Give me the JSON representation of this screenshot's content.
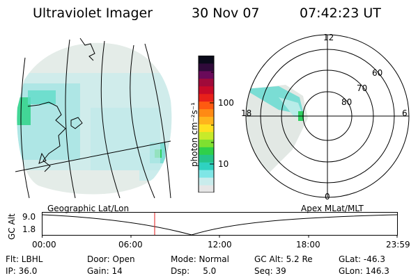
{
  "header": {
    "instrument": "Ultraviolet Imager",
    "date": "30 Nov 07",
    "time": "07:42:23 UT"
  },
  "colorbar": {
    "unit_label": "photon cm⁻²s⁻¹",
    "ticks": [
      "100",
      "10"
    ],
    "colors": [
      "#e6e6e6",
      "#c9ecec",
      "#7fe6e6",
      "#2fd2c0",
      "#25c48a",
      "#2fd04a",
      "#7fe030",
      "#c8ea2a",
      "#ffe020",
      "#ffb41c",
      "#ff8a14",
      "#ff5a10",
      "#e8201a",
      "#c80a28",
      "#a00a3a",
      "#6a0a5a",
      "#300a3a",
      "#0a0a1a"
    ]
  },
  "left_panel": {
    "name": "geographic-map"
  },
  "polar_plot": {
    "mlt_labels": {
      "top": "12",
      "left": "18",
      "right": "6",
      "bottom": "0"
    },
    "mlat_labels": [
      "60",
      "70",
      "80"
    ]
  },
  "altitude_plot": {
    "left_label": "Geographic Lat/Lon",
    "right_label": "Apex MLat/MLT",
    "y_axis_title": "GC Alt",
    "y_ticks": [
      "9.0",
      "1.8"
    ],
    "x_ticks": [
      "00:00",
      "06:00",
      "12:00",
      "18:00",
      "23:59"
    ]
  },
  "info": {
    "filter": "Flt: LBHL",
    "ip": "IP: 36.0",
    "door": "Door: Open",
    "gain": "Gain: 14",
    "mode": "Mode: Normal",
    "dsp": "Dsp:     5.0",
    "gc_alt": "GC Alt: 5.2 Re",
    "seq": "Seq: 39",
    "glat": "GLat: -46.3",
    "glon": "GLon: 146.3"
  }
}
